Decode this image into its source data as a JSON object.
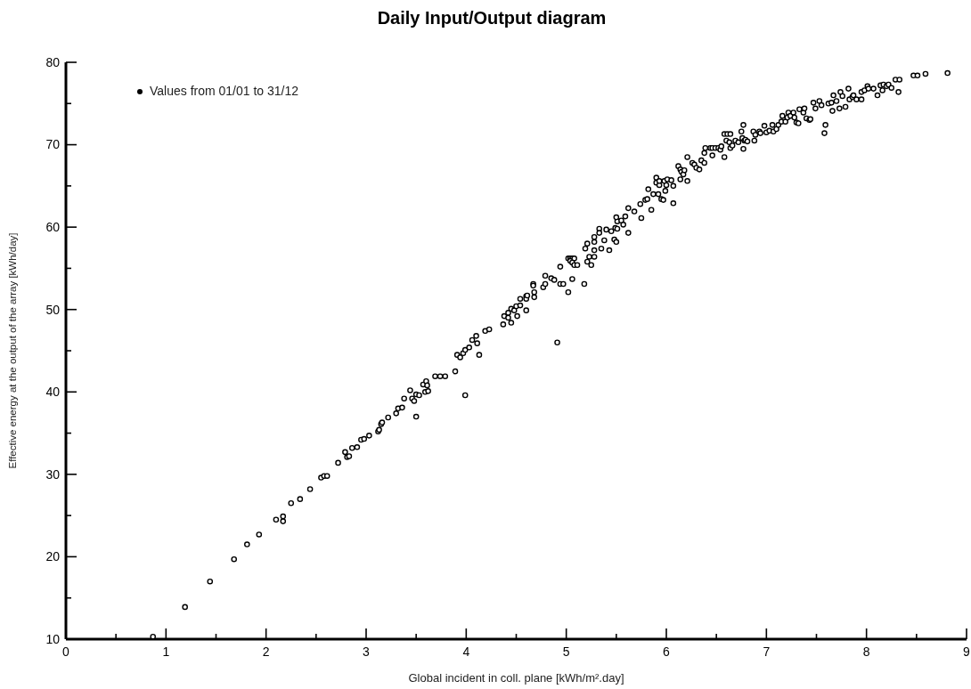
{
  "chart_data": {
    "type": "scatter",
    "title": "Daily Input/Output diagram",
    "xlabel": "Global incident in coll. plane [kWh/m².day]",
    "ylabel": "Effective energy at the output of the array [kWh/day]",
    "xlim": [
      0,
      9
    ],
    "ylim": [
      10,
      80
    ],
    "xticks": [
      0,
      {
        "value": 0.5,
        "label": null
      },
      1,
      {
        "value": 1.5,
        "label": null
      },
      2,
      {
        "value": 2.5,
        "label": null
      },
      3,
      {
        "value": 3.5,
        "label": null
      },
      4,
      {
        "value": 4.5,
        "label": null
      },
      5,
      {
        "value": 5.5,
        "label": null
      },
      6,
      {
        "value": 6.5,
        "label": null
      },
      7,
      {
        "value": 7.5,
        "label": null
      },
      8,
      {
        "value": 8.5,
        "label": null
      },
      9
    ],
    "yticks": [
      10,
      {
        "value": 15,
        "label": null
      },
      20,
      {
        "value": 25,
        "label": null
      },
      30,
      {
        "value": 35,
        "label": null
      },
      40,
      {
        "value": 45,
        "label": null
      },
      50,
      {
        "value": 55,
        "label": null
      },
      60,
      {
        "value": 65,
        "label": null
      },
      70,
      {
        "value": 75,
        "label": null
      },
      80
    ],
    "legend": "top left",
    "marker": "circle",
    "x": [
      0.87,
      1.19,
      1.44,
      1.68,
      1.81,
      1.93,
      2.1,
      2.17,
      2.17,
      2.25,
      2.34,
      2.44,
      2.55,
      2.58,
      2.61,
      2.72,
      2.79,
      2.81,
      2.83,
      2.86,
      2.91,
      2.95,
      2.98,
      3.03,
      3.12,
      3.13,
      3.15,
      3.16,
      3.22,
      3.3,
      3.32,
      3.36,
      3.38,
      3.44,
      3.46,
      3.48,
      3.5,
      3.5,
      3.53,
      3.57,
      3.59,
      3.6,
      3.61,
      3.62,
      3.69,
      3.74,
      3.79,
      3.89,
      3.91,
      3.94,
      3.97,
      3.99,
      3.99,
      4.03,
      4.06,
      4.1,
      4.11,
      4.13,
      4.19,
      4.23,
      4.37,
      4.38,
      4.42,
      4.42,
      4.45,
      4.45,
      4.48,
      4.5,
      4.51,
      4.54,
      4.54,
      4.6,
      4.6,
      4.61,
      4.6,
      4.67,
      4.67,
      4.68,
      4.68,
      4.77,
      4.79,
      4.79,
      4.85,
      4.88,
      4.91,
      4.94,
      4.94,
      4.97,
      5.02,
      5.02,
      5.04,
      5.06,
      5.08,
      5.04,
      5.06,
      5.08,
      5.11,
      5.06,
      5.18,
      5.19,
      5.21,
      5.23,
      5.21,
      5.25,
      5.28,
      5.28,
      5.28,
      5.28,
      5.33,
      5.33,
      5.35,
      5.38,
      5.4,
      5.45,
      5.43,
      5.48,
      5.5,
      5.49,
      5.51,
      5.51,
      5.5,
      5.55,
      5.57,
      5.59,
      5.62,
      5.62,
      5.68,
      5.75,
      5.74,
      5.79,
      5.81,
      5.85,
      5.82,
      5.87,
      5.92,
      5.95,
      5.97,
      5.99,
      6.07,
      5.9,
      5.9,
      5.93,
      5.93,
      5.98,
      6.0,
      6.01,
      6.05,
      6.07,
      6.14,
      6.21,
      6.12,
      6.14,
      6.15,
      6.17,
      6.18,
      6.21,
      6.26,
      6.28,
      6.3,
      6.33,
      6.35,
      6.38,
      6.38,
      6.39,
      6.44,
      6.46,
      6.49,
      6.52,
      6.54,
      6.55,
      6.46,
      6.58,
      6.58,
      6.61,
      6.64,
      6.6,
      6.63,
      6.64,
      6.66,
      6.69,
      6.72,
      6.75,
      6.77,
      6.76,
      6.78,
      6.79,
      6.81,
      6.77,
      6.87,
      6.89,
      6.88,
      6.93,
      6.94,
      6.98,
      7.0,
      7.03,
      7.06,
      7.07,
      7.1,
      7.12,
      7.15,
      7.16,
      7.19,
      7.21,
      7.22,
      7.24,
      7.27,
      7.28,
      7.3,
      7.33,
      7.32,
      7.37,
      7.38,
      7.4,
      7.43,
      7.44,
      7.47,
      7.49,
      7.53,
      7.55,
      7.58,
      7.59,
      7.62,
      7.65,
      7.66,
      7.67,
      7.7,
      7.73,
      7.74,
      7.76,
      7.79,
      7.82,
      7.83,
      7.86,
      7.87,
      7.9,
      7.95,
      7.95,
      7.98,
      8.01,
      8.02,
      8.07,
      8.11,
      8.14,
      8.16,
      8.17,
      8.2,
      8.22,
      8.25,
      8.29,
      8.32,
      8.33,
      8.47,
      8.51,
      8.59,
      8.81
    ],
    "series": [
      {
        "name": "Values from 01/01 to 31/12",
        "color": "#000000",
        "values": [
          10.3,
          13.9,
          17.0,
          19.7,
          21.5,
          22.7,
          24.5,
          24.9,
          24.3,
          26.5,
          27.0,
          28.2,
          29.6,
          29.8,
          29.8,
          31.4,
          32.7,
          32.1,
          32.2,
          33.2,
          33.3,
          34.2,
          34.3,
          34.7,
          35.2,
          35.4,
          36.1,
          36.3,
          36.9,
          37.4,
          38.0,
          38.1,
          39.2,
          40.2,
          39.2,
          38.9,
          39.7,
          37.0,
          39.6,
          40.9,
          40.0,
          41.3,
          40.8,
          40.1,
          41.9,
          41.9,
          41.9,
          42.5,
          44.5,
          44.2,
          44.7,
          45.1,
          39.6,
          45.4,
          46.3,
          46.8,
          45.9,
          44.5,
          47.4,
          47.6,
          48.2,
          49.2,
          49.0,
          49.6,
          50.1,
          48.4,
          49.9,
          50.4,
          49.2,
          50.5,
          51.3,
          51.6,
          51.3,
          51.7,
          49.9,
          53.1,
          52.9,
          52.1,
          51.5,
          52.7,
          53.1,
          54.1,
          53.8,
          53.6,
          46.0,
          55.2,
          53.1,
          53.1,
          52.1,
          56.2,
          56.2,
          56.2,
          56.2,
          55.9,
          55.7,
          55.4,
          55.4,
          53.7,
          53.1,
          57.4,
          58.0,
          56.4,
          55.8,
          55.4,
          57.2,
          58.2,
          58.8,
          56.4,
          59.8,
          59.3,
          57.4,
          58.4,
          59.7,
          59.5,
          57.2,
          58.5,
          58.2,
          59.9,
          59.8,
          60.7,
          61.2,
          60.8,
          60.3,
          61.3,
          62.3,
          59.3,
          61.9,
          61.1,
          62.8,
          63.3,
          63.4,
          62.1,
          64.6,
          64.0,
          64.0,
          63.4,
          63.3,
          64.4,
          62.9,
          65.4,
          66.0,
          65.1,
          65.6,
          65.6,
          65.1,
          65.8,
          65.7,
          65.0,
          65.8,
          65.6,
          67.4,
          67.0,
          66.7,
          66.4,
          66.9,
          68.5,
          67.8,
          67.6,
          67.2,
          67.0,
          68.1,
          67.8,
          69.0,
          69.6,
          69.6,
          69.6,
          69.6,
          69.6,
          69.4,
          69.8,
          68.7,
          68.5,
          71.3,
          71.3,
          71.3,
          70.5,
          70.3,
          69.6,
          69.9,
          70.5,
          70.3,
          71.6,
          72.4,
          70.8,
          70.5,
          70.6,
          70.4,
          69.5,
          71.6,
          71.2,
          70.5,
          71.6,
          71.4,
          72.3,
          71.5,
          71.7,
          72.4,
          71.6,
          71.9,
          72.4,
          72.8,
          73.5,
          72.8,
          73.3,
          73.9,
          73.5,
          73.9,
          73.3,
          72.7,
          74.3,
          72.6,
          73.9,
          74.4,
          73.2,
          73.0,
          73.1,
          75.1,
          74.4,
          75.3,
          74.8,
          71.4,
          72.4,
          75.0,
          75.1,
          74.1,
          76.0,
          75.3,
          74.4,
          76.4,
          75.9,
          74.6,
          76.8,
          75.5,
          75.8,
          76.0,
          75.5,
          76.4,
          75.5,
          76.6,
          77.1,
          76.8,
          76.8,
          76.0,
          77.2,
          76.6,
          77.3,
          77.1,
          77.3,
          76.9,
          77.9,
          76.4,
          77.9,
          78.4,
          78.4,
          78.6,
          78.7
        ]
      }
    ]
  }
}
